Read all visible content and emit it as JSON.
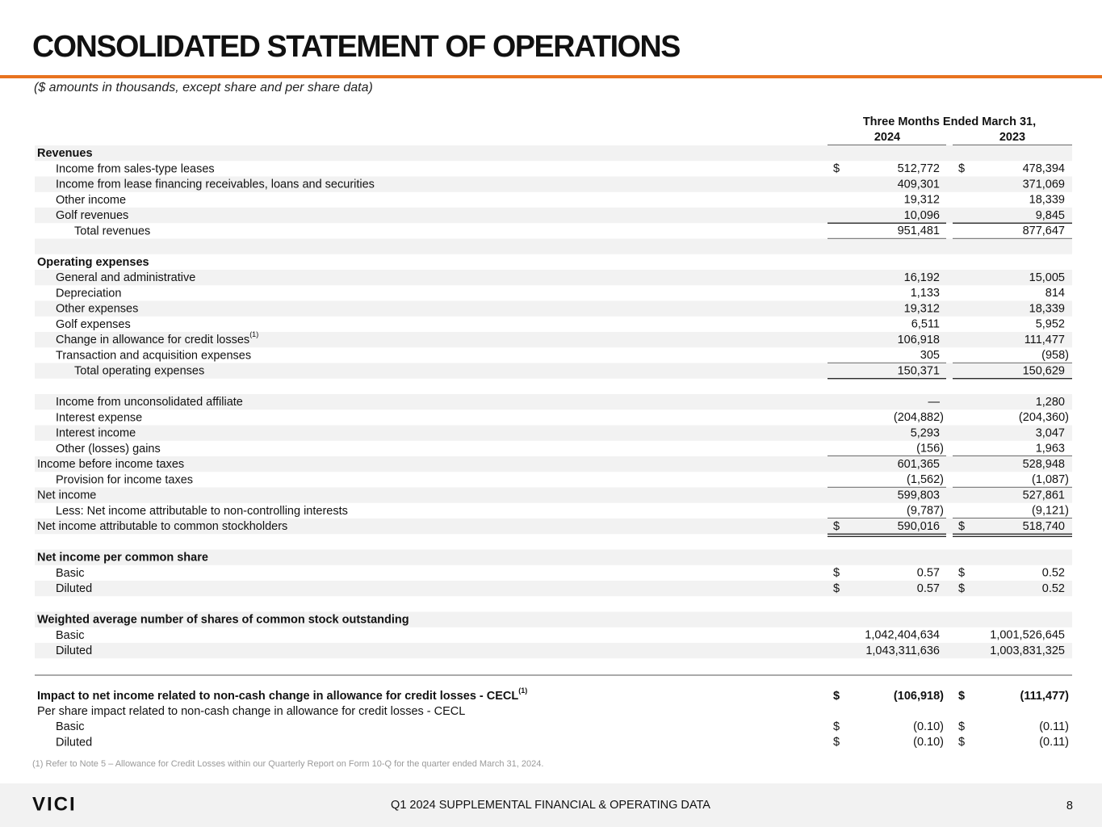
{
  "title": "CONSOLIDATED STATEMENT OF OPERATIONS",
  "subtitle": "($ amounts in thousands, except share and per share data)",
  "table": {
    "header": {
      "period": "Three Months Ended March 31,",
      "years": [
        "2024",
        "2023"
      ]
    },
    "rows": [
      {
        "label": "Revenues"
      },
      {
        "label": "Income from sales-type leases",
        "currency": "$",
        "values": [
          "512,772",
          "478,394"
        ]
      },
      {
        "label": "Income from lease financing receivables, loans and securities",
        "values": [
          "409,301",
          "371,069"
        ]
      },
      {
        "label": "Other income",
        "values": [
          "19,312",
          "18,339"
        ]
      },
      {
        "label": "Golf revenues",
        "values": [
          "10,096",
          "9,845"
        ]
      },
      {
        "label": "Total revenues",
        "values": [
          "951,481",
          "877,647"
        ]
      },
      null,
      {
        "label": "Operating expenses"
      },
      {
        "label": "General and administrative",
        "values": [
          "16,192",
          "15,005"
        ]
      },
      {
        "label": "Depreciation",
        "values": [
          "1,133",
          "814"
        ]
      },
      {
        "label": "Other expenses",
        "values": [
          "19,312",
          "18,339"
        ]
      },
      {
        "label": "Golf expenses",
        "values": [
          "6,511",
          "5,952"
        ]
      },
      {
        "label": "Change in allowance for credit losses",
        "note": "(1)",
        "values": [
          "106,918",
          "111,477"
        ]
      },
      {
        "label": "Transaction and acquisition expenses",
        "values": [
          "305",
          "(958)"
        ]
      },
      {
        "label": "Total operating expenses",
        "values": [
          "150,371",
          "150,629"
        ]
      },
      null,
      {
        "label": "Income from unconsolidated affiliate",
        "values": [
          "—",
          "1,280"
        ]
      },
      {
        "label": "Interest expense",
        "values": [
          "(204,882)",
          "(204,360)"
        ]
      },
      {
        "label": "Interest income",
        "values": [
          "5,293",
          "3,047"
        ]
      },
      {
        "label": "Other (losses) gains",
        "values": [
          "(156)",
          "1,963"
        ]
      },
      {
        "label": "Income before income taxes",
        "values": [
          "601,365",
          "528,948"
        ]
      },
      {
        "label": "Provision for income taxes",
        "values": [
          "(1,562)",
          "(1,087)"
        ]
      },
      {
        "label": "Net income",
        "values": [
          "599,803",
          "527,861"
        ]
      },
      {
        "label": "Less: Net income attributable to non-controlling interests",
        "values": [
          "(9,787)",
          "(9,121)"
        ]
      },
      {
        "label": "Net income attributable to common stockholders",
        "currency": "$",
        "values": [
          "590,016",
          "518,740"
        ]
      },
      null,
      {
        "label": "Net income per common share"
      },
      {
        "label": "Basic",
        "currency": "$",
        "values": [
          "0.57",
          "0.52"
        ]
      },
      {
        "label": "Diluted",
        "currency": "$",
        "values": [
          "0.57",
          "0.52"
        ]
      },
      null,
      {
        "label": "Weighted average number of shares of common stock outstanding"
      },
      {
        "label": "Basic",
        "values": [
          "1,042,404,634",
          "1,001,526,645"
        ]
      },
      {
        "label": "Diluted",
        "values": [
          "1,043,311,636",
          "1,003,831,325"
        ]
      }
    ]
  },
  "cecl_rows": [
    {
      "label": "Impact to net income related to non-cash change in allowance for credit losses - CECL",
      "note": "(1)",
      "currency": "$",
      "values": [
        "(106,918)",
        "(111,477)"
      ]
    },
    {
      "label": "Per share impact related to non-cash change in allowance for credit losses - CECL"
    },
    {
      "label": "Basic",
      "currency": "$",
      "values": [
        "(0.10)",
        "(0.11)"
      ]
    },
    {
      "label": "Diluted",
      "currency": "$",
      "values": [
        "(0.10)",
        "(0.11)"
      ]
    }
  ],
  "footnote": "(1) Refer to Note 5 – Allowance for Credit Losses within our Quarterly Report on Form 10-Q for the quarter ended March 31, 2024.",
  "footer": {
    "logo": "VICI",
    "text": "Q1 2024 SUPPLEMENTAL FINANCIAL & OPERATING DATA",
    "page": "8"
  }
}
